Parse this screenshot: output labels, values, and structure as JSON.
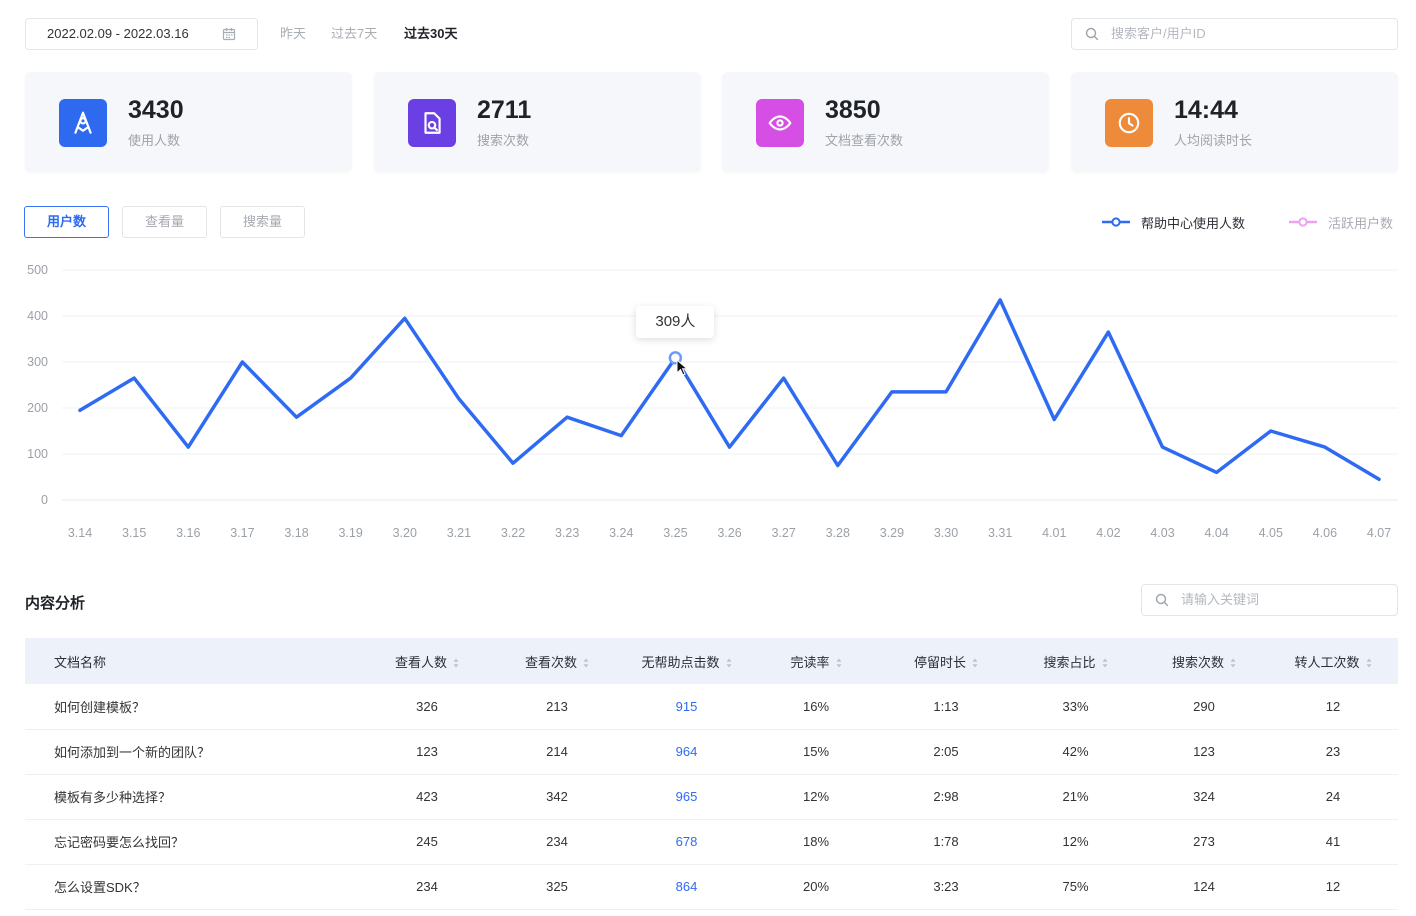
{
  "toolbar": {
    "date_range": "2022.02.09 - 2022.03.16",
    "quick_ranges": [
      {
        "label": "昨天",
        "active": false
      },
      {
        "label": "过去7天",
        "active": false
      },
      {
        "label": "过去30天",
        "active": true
      }
    ],
    "search_placeholder": "搜索客户/用户ID"
  },
  "stats": [
    {
      "value": "3430",
      "label": "使用人数",
      "icon": "rocket-icon",
      "color": "#2D6AF0"
    },
    {
      "value": "2711",
      "label": "搜索次数",
      "icon": "document-search-icon",
      "color": "#6A3FE4"
    },
    {
      "value": "3850",
      "label": "文档查看次数",
      "icon": "eye-icon",
      "color": "#D54FE5"
    },
    {
      "value": "14:44",
      "label": "人均阅读时长",
      "icon": "clock-icon",
      "color": "#EE8B3B"
    }
  ],
  "chart_tabs": [
    {
      "label": "用户数",
      "active": true
    },
    {
      "label": "查看量",
      "active": false
    },
    {
      "label": "搜索量",
      "active": false
    }
  ],
  "chart_data": {
    "type": "line",
    "x": [
      "3.14",
      "3.15",
      "3.16",
      "3.17",
      "3.18",
      "3.19",
      "3.20",
      "3.21",
      "3.22",
      "3.23",
      "3.24",
      "3.25",
      "3.26",
      "3.27",
      "3.28",
      "3.29",
      "3.30",
      "3.31",
      "4.01",
      "4.02",
      "4.03",
      "4.04",
      "4.05",
      "4.06",
      "4.07"
    ],
    "series": [
      {
        "name": "帮助中心使用人数",
        "color": "#2F6BF2",
        "visible": true,
        "values": [
          195,
          265,
          115,
          300,
          180,
          265,
          395,
          220,
          80,
          180,
          140,
          309,
          115,
          265,
          75,
          235,
          235,
          435,
          175,
          365,
          115,
          60,
          150,
          115,
          45
        ]
      },
      {
        "name": "活跃用户数",
        "color": "#EBA3F0",
        "visible": false
      }
    ],
    "yticks": [
      0,
      100,
      200,
      300,
      400,
      500
    ],
    "ylim": [
      0,
      500
    ],
    "grid": true,
    "legend_position": "top-right",
    "tooltip": {
      "x": "3.25",
      "text": "309人"
    }
  },
  "content_analysis": {
    "title": "内容分析",
    "search_placeholder": "请输入关键词",
    "columns": [
      "文档名称",
      "查看人数",
      "查看次数",
      "无帮助点击数",
      "完读率",
      "停留时长",
      "搜索占比",
      "搜索次数",
      "转人工次数"
    ],
    "rows": [
      {
        "name": "如何创建模板？",
        "viewers": "326",
        "views": "213",
        "unhelpful_clicks": "915",
        "completion_rate": "16%",
        "dwell_time": "1:13",
        "search_share": "33%",
        "searches": "290",
        "transfers": "12"
      },
      {
        "name": "如何添加到一个新的团队？",
        "viewers": "123",
        "views": "214",
        "unhelpful_clicks": "964",
        "completion_rate": "15%",
        "dwell_time": "2:05",
        "search_share": "42%",
        "searches": "123",
        "transfers": "23"
      },
      {
        "name": "模板有多少种选择？",
        "viewers": "423",
        "views": "342",
        "unhelpful_clicks": "965",
        "completion_rate": "12%",
        "dwell_time": "2:98",
        "search_share": "21%",
        "searches": "324",
        "transfers": "24"
      },
      {
        "name": "忘记密码要怎么找回？",
        "viewers": "245",
        "views": "234",
        "unhelpful_clicks": "678",
        "completion_rate": "18%",
        "dwell_time": "1:78",
        "search_share": "12%",
        "searches": "273",
        "transfers": "41"
      },
      {
        "name": "怎么设置SDK？",
        "viewers": "234",
        "views": "325",
        "unhelpful_clicks": "864",
        "completion_rate": "20%",
        "dwell_time": "3:23",
        "search_share": "75%",
        "searches": "124",
        "transfers": "12"
      }
    ]
  },
  "colors": {
    "accent": "#2F6BF2",
    "link": "#2F6BF2"
  }
}
